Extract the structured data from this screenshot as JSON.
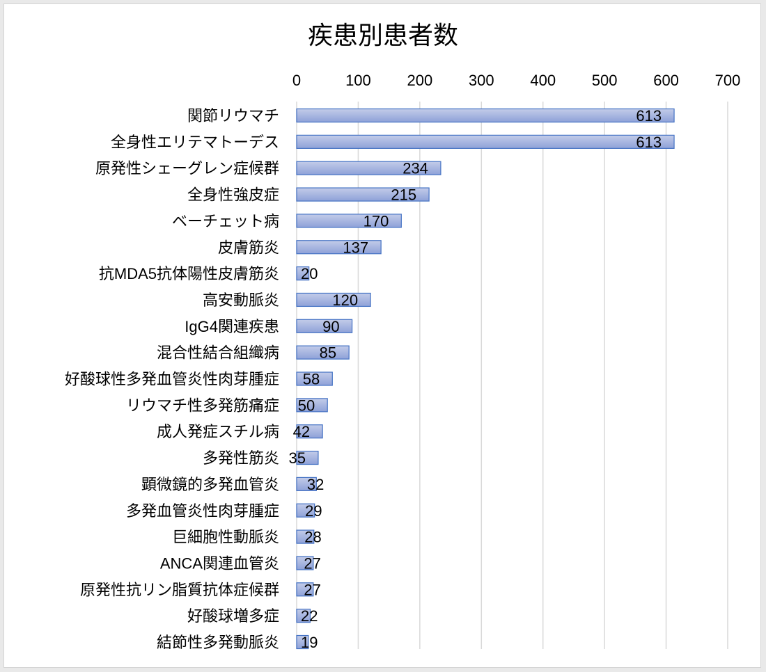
{
  "chart_data": {
    "type": "bar",
    "orientation": "horizontal",
    "title": "疾患別患者数",
    "xlabel": "",
    "ylabel": "",
    "xlim": [
      0,
      700
    ],
    "ticks": [
      "0",
      "100",
      "200",
      "300",
      "400",
      "500",
      "600",
      "700"
    ],
    "tick_values": [
      0,
      100,
      200,
      300,
      400,
      500,
      600,
      700
    ],
    "x_axis_position": "top",
    "grid": true,
    "legend": "none",
    "data_labels": true,
    "categories": [
      "関節リウマチ",
      "全身性エリテマトーデス",
      "原発性シェーグレン症候群",
      "全身性強皮症",
      "ベーチェット病",
      "皮膚筋炎",
      "抗MDA5抗体陽性皮膚筋炎",
      "高安動脈炎",
      "IgG4関連疾患",
      "混合性結合組織病",
      "好酸球性多発血管炎性肉芽腫症",
      "リウマチ性多発筋痛症",
      "成人発症スチル病",
      "多発性筋炎",
      "顕微鏡的多発血管炎",
      "多発血管炎性肉芽腫症",
      "巨細胞性動脈炎",
      "ANCA関連血管炎",
      "原発性抗リン脂質抗体症候群",
      "好酸球増多症",
      "結節性多発動脈炎"
    ],
    "values": [
      613,
      613,
      234,
      215,
      170,
      137,
      20,
      120,
      90,
      85,
      58,
      50,
      42,
      35,
      32,
      29,
      28,
      27,
      27,
      22,
      19
    ],
    "colors": {
      "bar_fill_top": "#c3cce9",
      "bar_fill_bottom": "#8ea1d8",
      "bar_stroke": "#4472c4",
      "grid": "#d9d9d9"
    }
  }
}
